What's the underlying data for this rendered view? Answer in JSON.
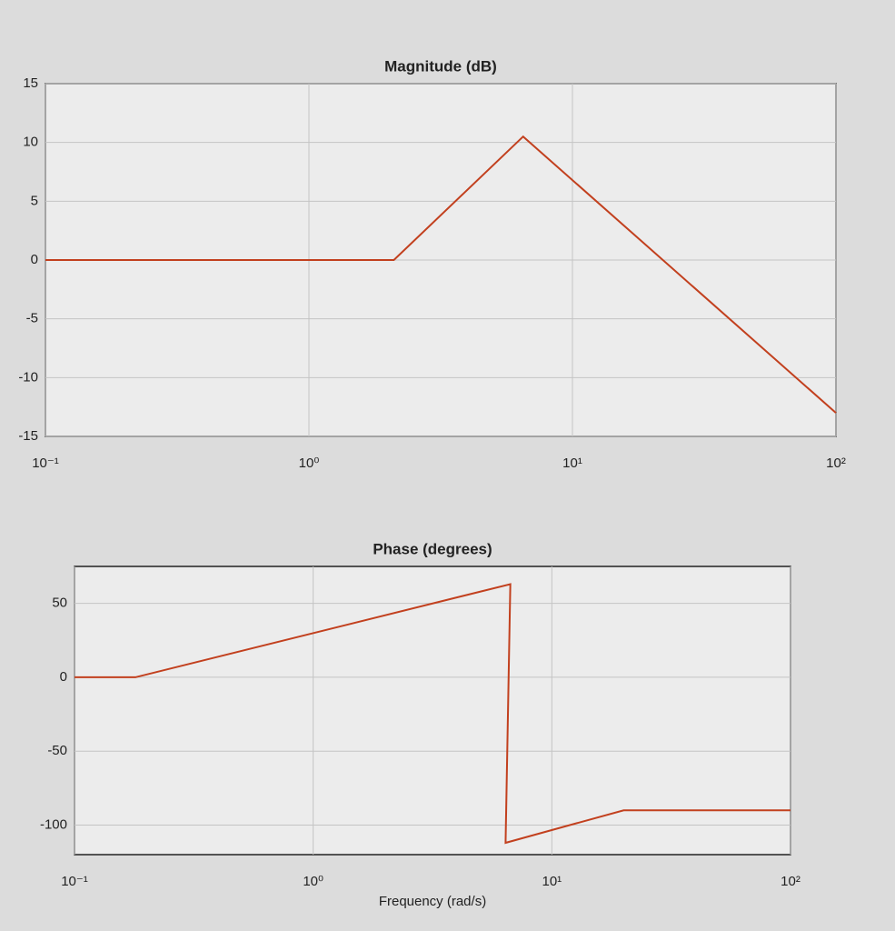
{
  "chart_data": [
    {
      "type": "line",
      "title": "Magnitude (dB)",
      "xscale": "log",
      "x": [
        0.1,
        2.1,
        6.5,
        100
      ],
      "series": [
        {
          "color": "#c2401e",
          "values": [
            0,
            0,
            10.5,
            -13
          ]
        }
      ],
      "xlim": [
        0.1,
        100
      ],
      "xticks": [
        {
          "value": 0.1,
          "label": "10⁻¹"
        },
        {
          "value": 1,
          "label": "10⁰"
        },
        {
          "value": 10,
          "label": "10¹"
        },
        {
          "value": 100,
          "label": "10²"
        }
      ],
      "ylim": [
        -15,
        15
      ],
      "yticks": [
        -15,
        -10,
        -5,
        0,
        5,
        10,
        15
      ],
      "grid": true
    },
    {
      "type": "line",
      "title": "Phase (degrees)",
      "xlabel": "Frequency (rad/s)",
      "xscale": "log",
      "x": [
        0.1,
        0.18,
        6.7,
        6.4,
        20,
        100
      ],
      "series": [
        {
          "color": "#c2401e",
          "values": [
            0,
            0,
            63,
            -112,
            -90,
            -90
          ]
        }
      ],
      "xlim": [
        0.1,
        100
      ],
      "xticks": [
        {
          "value": 0.1,
          "label": "10⁻¹"
        },
        {
          "value": 1,
          "label": "10⁰"
        },
        {
          "value": 10,
          "label": "10¹"
        },
        {
          "value": 100,
          "label": "10²"
        }
      ],
      "ylim": [
        -120,
        75
      ],
      "yticks": [
        -100,
        -50,
        0,
        50
      ],
      "grid": true
    }
  ]
}
